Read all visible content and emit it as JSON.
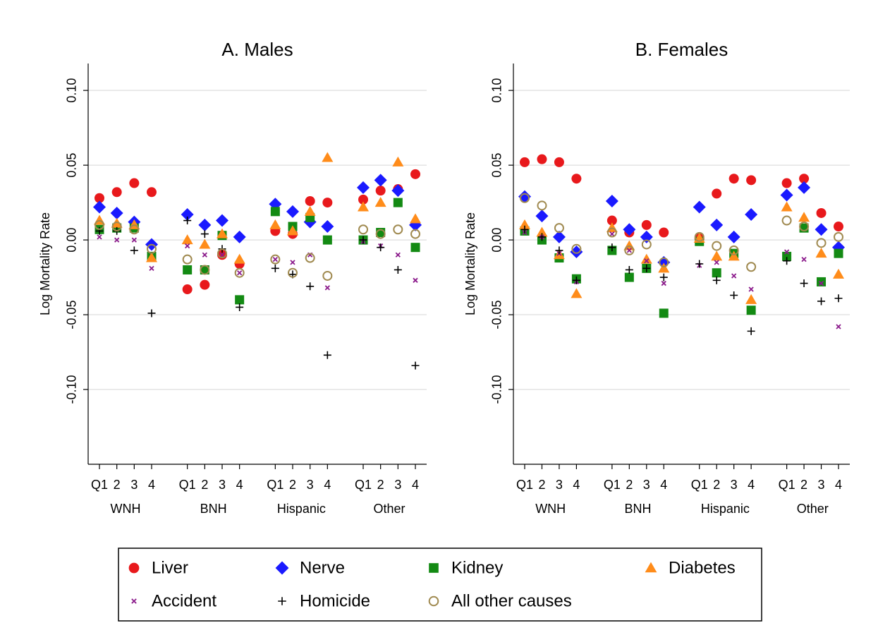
{
  "chart_data": [
    {
      "type": "scatter",
      "title": "A. Males",
      "y_label": "Log Mortality Rate",
      "categories": [
        "Q1",
        "2",
        "3",
        "4",
        "Q1",
        "2",
        "3",
        "4",
        "Q1",
        "2",
        "3",
        "4",
        "Q1",
        "2",
        "3",
        "4"
      ],
      "groups": [
        "WNH",
        "BNH",
        "Hispanic",
        "Other"
      ],
      "ylim": [
        -0.15,
        0.118
      ],
      "yticks": [
        {
          "value": -0.1,
          "label": "-0.10"
        },
        -0.05,
        {
          "value": 0,
          "label": "0.00"
        },
        0.05,
        {
          "value": 0.1,
          "label": "0.10"
        }
      ],
      "grid": true,
      "series": [
        {
          "name": "Liver",
          "color": "#e8191c",
          "marker": "circle",
          "values": [
            0.028,
            0.032,
            0.038,
            0.032,
            -0.033,
            -0.03,
            -0.01,
            -0.016,
            0.006,
            0.004,
            0.026,
            0.025,
            0.027,
            0.033,
            0.034,
            0.044
          ]
        },
        {
          "name": "Nerve",
          "color": "#1a1aff",
          "marker": "diamond",
          "values": [
            0.022,
            0.018,
            0.012,
            -0.003,
            0.017,
            0.01,
            0.013,
            0.002,
            0.024,
            0.019,
            0.012,
            0.009,
            0.035,
            0.04,
            0.033,
            0.01
          ]
        },
        {
          "name": "Kidney",
          "color": "#138a13",
          "marker": "square",
          "values": [
            0.007,
            0.008,
            0.008,
            -0.011,
            -0.02,
            -0.02,
            0.003,
            -0.04,
            0.019,
            0.009,
            0.015,
            0.0,
            0.0,
            0.005,
            0.025,
            -0.005
          ]
        },
        {
          "name": "Diabetes",
          "color": "#ff8c1a",
          "marker": "triangle",
          "values": [
            0.013,
            0.011,
            0.01,
            -0.012,
            0.0,
            -0.003,
            0.004,
            -0.013,
            0.01,
            0.006,
            0.019,
            0.055,
            0.022,
            0.025,
            0.052,
            0.014
          ]
        },
        {
          "name": "Accident",
          "color": "#8b1a8b",
          "marker": "x",
          "values": [
            0.002,
            0.0,
            0.0,
            -0.019,
            -0.004,
            -0.01,
            -0.01,
            -0.022,
            -0.013,
            -0.015,
            -0.01,
            -0.032,
            -0.001,
            -0.004,
            -0.01,
            -0.027
          ]
        },
        {
          "name": "Homicide",
          "color": "#000000",
          "marker": "plus",
          "values": [
            0.006,
            0.006,
            -0.007,
            -0.049,
            0.013,
            0.004,
            -0.006,
            -0.045,
            -0.019,
            -0.023,
            -0.031,
            -0.077,
            0.0,
            -0.005,
            -0.02,
            -0.084
          ]
        },
        {
          "name": "All other causes",
          "color": "#a08a50",
          "marker": "hollow-circle",
          "values": [
            0.01,
            0.009,
            0.007,
            -0.006,
            -0.013,
            -0.02,
            -0.009,
            -0.022,
            -0.013,
            -0.022,
            -0.012,
            -0.024,
            0.007,
            0.004,
            0.007,
            0.004
          ]
        }
      ]
    },
    {
      "type": "scatter",
      "title": "B. Females",
      "y_label": "Log Mortality Rate",
      "categories": [
        "Q1",
        "2",
        "3",
        "4",
        "Q1",
        "2",
        "3",
        "4",
        "Q1",
        "2",
        "3",
        "4",
        "Q1",
        "2",
        "3",
        "4"
      ],
      "groups": [
        "WNH",
        "BNH",
        "Hispanic",
        "Other"
      ],
      "ylim": [
        -0.15,
        0.118
      ],
      "yticks": [
        {
          "value": -0.1,
          "label": "-0.10"
        },
        -0.05,
        {
          "value": 0,
          "label": "0.00"
        },
        0.05,
        {
          "value": 0.1,
          "label": "0.10"
        }
      ],
      "grid": true,
      "series": [
        {
          "name": "Liver",
          "color": "#e8191c",
          "marker": "circle",
          "values": [
            0.052,
            0.054,
            0.052,
            0.041,
            0.013,
            0.005,
            0.01,
            0.005,
            0.001,
            0.031,
            0.041,
            0.04,
            0.038,
            0.041,
            0.018,
            0.009
          ]
        },
        {
          "name": "Nerve",
          "color": "#1a1aff",
          "marker": "diamond",
          "values": [
            0.029,
            0.016,
            0.002,
            -0.008,
            0.026,
            0.007,
            0.002,
            -0.015,
            0.022,
            0.01,
            0.002,
            0.017,
            0.03,
            0.035,
            0.007,
            -0.005
          ]
        },
        {
          "name": "Kidney",
          "color": "#138a13",
          "marker": "square",
          "values": [
            0.006,
            0.0,
            -0.012,
            -0.026,
            -0.007,
            -0.025,
            -0.019,
            -0.049,
            -0.001,
            -0.022,
            -0.009,
            -0.047,
            -0.011,
            0.008,
            -0.028,
            -0.009
          ]
        },
        {
          "name": "Diabetes",
          "color": "#ff8c1a",
          "marker": "triangle",
          "values": [
            0.01,
            0.005,
            -0.01,
            -0.036,
            0.008,
            -0.004,
            -0.013,
            -0.019,
            0.001,
            -0.011,
            -0.011,
            -0.04,
            0.022,
            0.015,
            -0.009,
            -0.023
          ]
        },
        {
          "name": "Accident",
          "color": "#8b1a8b",
          "marker": "x",
          "values": [
            0.005,
            0.002,
            -0.009,
            -0.028,
            0.004,
            -0.007,
            -0.014,
            -0.029,
            -0.017,
            -0.015,
            -0.024,
            -0.033,
            -0.008,
            -0.013,
            -0.029,
            -0.058
          ]
        },
        {
          "name": "Homicide",
          "color": "#000000",
          "marker": "plus",
          "values": [
            0.007,
            0.002,
            -0.007,
            -0.027,
            -0.005,
            -0.02,
            -0.019,
            -0.025,
            -0.016,
            -0.027,
            -0.037,
            -0.061,
            -0.014,
            -0.029,
            -0.041,
            -0.039
          ]
        },
        {
          "name": "All other causes",
          "color": "#a08a50",
          "marker": "hollow-circle",
          "values": [
            0.028,
            0.023,
            0.008,
            -0.006,
            0.005,
            -0.007,
            -0.003,
            -0.015,
            0.002,
            -0.004,
            -0.007,
            -0.018,
            0.013,
            0.009,
            -0.002,
            0.002
          ]
        }
      ]
    }
  ]
}
